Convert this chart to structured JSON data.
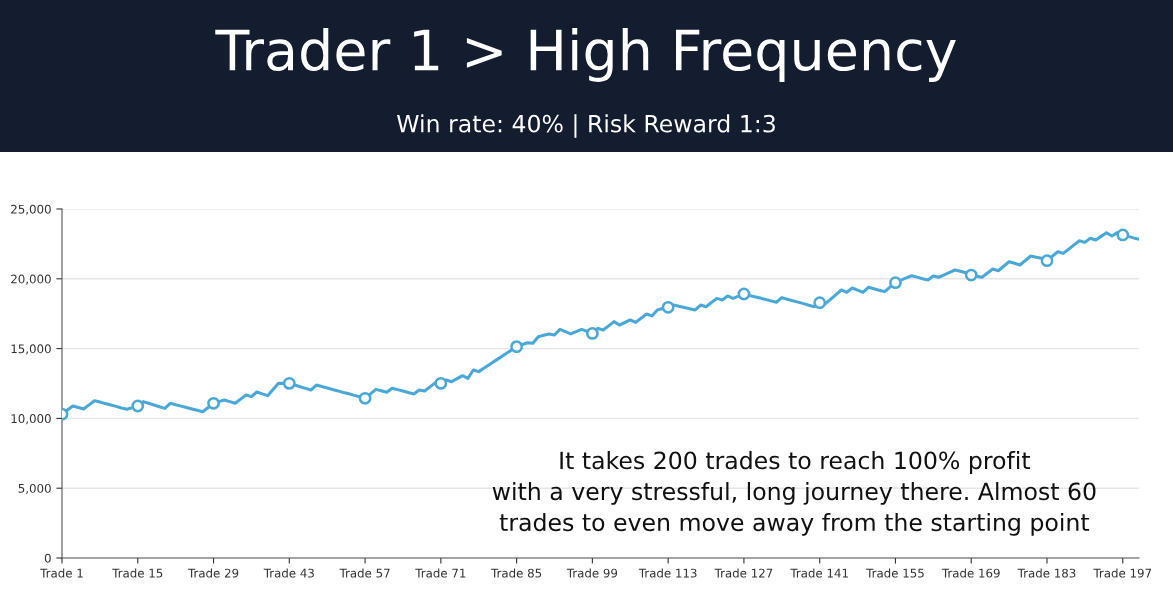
{
  "chart_data": {
    "type": "line",
    "title": "Trader 1 > High Frequency",
    "subtitle": "Win rate: 40% | Risk Reward 1:3",
    "annotations": [
      "It takes 200 trades to reach 100% profit\nwith a very stressful, long journey there. Almost 60\ntrades to even move away from the starting point"
    ],
    "categories": [
      "Trade 1",
      null,
      null,
      null,
      null,
      null,
      null,
      null,
      null,
      null,
      null,
      null,
      null,
      null,
      "Trade 15",
      null,
      null,
      null,
      null,
      null,
      null,
      null,
      null,
      null,
      null,
      null,
      null,
      null,
      "Trade 29",
      null,
      null,
      null,
      null,
      null,
      null,
      null,
      null,
      null,
      null,
      null,
      null,
      null,
      "Trade 43",
      null,
      null,
      null,
      null,
      null,
      null,
      null,
      null,
      null,
      null,
      null,
      null,
      null,
      "Trade 57",
      null,
      null,
      null,
      null,
      null,
      null,
      null,
      null,
      null,
      null,
      null,
      null,
      null,
      "Trade 71",
      null,
      null,
      null,
      null,
      null,
      null,
      null,
      null,
      null,
      null,
      null,
      null,
      null,
      "Trade 85",
      null,
      null,
      null,
      null,
      null,
      null,
      null,
      null,
      null,
      null,
      null,
      null,
      null,
      "Trade 99",
      null,
      null,
      null,
      null,
      null,
      null,
      null,
      null,
      null,
      null,
      null,
      null,
      null,
      "Trade 113",
      null,
      null,
      null,
      null,
      null,
      null,
      null,
      null,
      null,
      null,
      null,
      null,
      null,
      "Trade 127",
      null,
      null,
      null,
      null,
      null,
      null,
      null,
      null,
      null,
      null,
      null,
      null,
      null,
      "Trade 141",
      null,
      null,
      null,
      null,
      null,
      null,
      null,
      null,
      null,
      null,
      null,
      null,
      null,
      "Trade 155",
      null,
      null,
      null,
      null,
      null,
      null,
      null,
      null,
      null,
      null,
      null,
      null,
      null,
      "Trade 169",
      null,
      null,
      null,
      null,
      null,
      null,
      null,
      null,
      null,
      null,
      null,
      null,
      null,
      "Trade 183",
      null,
      null,
      null,
      null,
      null,
      null,
      null,
      null,
      null,
      null,
      null,
      null,
      null,
      "Trade 197",
      null,
      null,
      null
    ],
    "series": [
      {
        "color": "#4aa8d8",
        "line_style": "solid",
        "values": [
          10300,
          10600,
          10890,
          10780,
          10670,
          10970,
          11270,
          11170,
          11060,
          10960,
          10860,
          10750,
          10650,
          10770,
          10890,
          11200,
          11080,
          10960,
          10840,
          10720,
          11080,
          10980,
          10880,
          10780,
          10680,
          10580,
          10480,
          10780,
          11080,
          11200,
          11320,
          11200,
          11080,
          11380,
          11680,
          11560,
          11890,
          11760,
          11630,
          12070,
          12510,
          12510,
          12510,
          12390,
          12270,
          12150,
          12030,
          12390,
          12280,
          12180,
          12070,
          11970,
          11860,
          11760,
          11650,
          11550,
          11440,
          11760,
          12080,
          11980,
          11870,
          12160,
          12060,
          11960,
          11850,
          11750,
          12030,
          11960,
          12260,
          12560,
          12510,
          12750,
          12630,
          12850,
          13060,
          12870,
          13470,
          13350,
          13610,
          13860,
          14120,
          14370,
          14630,
          14880,
          15140,
          15280,
          15420,
          15380,
          15850,
          15950,
          16050,
          15970,
          16380,
          16220,
          16050,
          16220,
          16380,
          16240,
          16090,
          16450,
          16330,
          16630,
          16930,
          16690,
          16870,
          17050,
          16880,
          17180,
          17480,
          17340,
          17770,
          17870,
          17960,
          18120,
          18030,
          17950,
          17860,
          17770,
          18120,
          18000,
          18300,
          18600,
          18480,
          18770,
          18600,
          18760,
          18910,
          18810,
          18710,
          18620,
          18520,
          18420,
          18320,
          18650,
          18540,
          18430,
          18330,
          18220,
          18110,
          18000,
          18290,
          18200,
          18530,
          18870,
          19200,
          19030,
          19340,
          19190,
          19030,
          19390,
          19290,
          19180,
          19080,
          19400,
          19720,
          19910,
          20070,
          20220,
          20120,
          20010,
          19910,
          20200,
          20110,
          20280,
          20460,
          20630,
          20540,
          20440,
          20270,
          20190,
          20110,
          20410,
          20700,
          20580,
          20900,
          21220,
          21110,
          20990,
          21310,
          21630,
          21550,
          21470,
          21300,
          21620,
          21940,
          21820,
          22120,
          22430,
          22730,
          22610,
          22900,
          22780,
          23040,
          23300,
          23070,
          23310,
          23140,
          23040,
          22930,
          22830
        ]
      },
      {
        "type": "scatter",
        "color": "#4aa8d8",
        "marker": "circle",
        "values": [
          10300,
          null,
          null,
          null,
          null,
          null,
          null,
          null,
          null,
          null,
          null,
          null,
          null,
          null,
          10890,
          null,
          null,
          null,
          null,
          null,
          null,
          null,
          null,
          null,
          null,
          null,
          null,
          null,
          11080,
          null,
          null,
          null,
          null,
          null,
          null,
          null,
          null,
          null,
          null,
          null,
          null,
          null,
          12510,
          null,
          null,
          null,
          null,
          null,
          null,
          null,
          null,
          null,
          null,
          null,
          null,
          null,
          11440,
          null,
          null,
          null,
          null,
          null,
          null,
          null,
          null,
          null,
          null,
          null,
          null,
          null,
          12510,
          null,
          null,
          null,
          null,
          null,
          null,
          null,
          null,
          null,
          null,
          null,
          null,
          null,
          15140,
          null,
          null,
          null,
          null,
          null,
          null,
          null,
          null,
          null,
          null,
          null,
          null,
          null,
          16090,
          null,
          null,
          null,
          null,
          null,
          null,
          null,
          null,
          null,
          null,
          null,
          null,
          null,
          17960,
          null,
          null,
          null,
          null,
          null,
          null,
          null,
          null,
          null,
          null,
          null,
          null,
          null,
          18910,
          null,
          null,
          null,
          null,
          null,
          null,
          null,
          null,
          null,
          null,
          null,
          null,
          null,
          18290,
          null,
          null,
          null,
          null,
          null,
          null,
          null,
          null,
          null,
          null,
          null,
          null,
          null,
          19720,
          null,
          null,
          null,
          null,
          null,
          null,
          null,
          null,
          null,
          null,
          null,
          null,
          null,
          20270,
          null,
          null,
          null,
          null,
          null,
          null,
          null,
          null,
          null,
          null,
          null,
          null,
          null,
          21300,
          null,
          null,
          null,
          null,
          null,
          null,
          null,
          null,
          null,
          null,
          null,
          null,
          null,
          23140,
          null,
          null,
          null
        ]
      }
    ],
    "ylim": [
      0,
      25000
    ],
    "yticks": [
      {
        "value": 0,
        "label": "0"
      },
      {
        "value": 5000,
        "label": "5,000"
      },
      {
        "value": 10000,
        "label": "10,000"
      },
      {
        "value": 15000,
        "label": "15,000"
      },
      {
        "value": 20000,
        "label": "20,000"
      },
      {
        "value": 25000,
        "label": "25,000"
      }
    ],
    "grid": "y"
  }
}
